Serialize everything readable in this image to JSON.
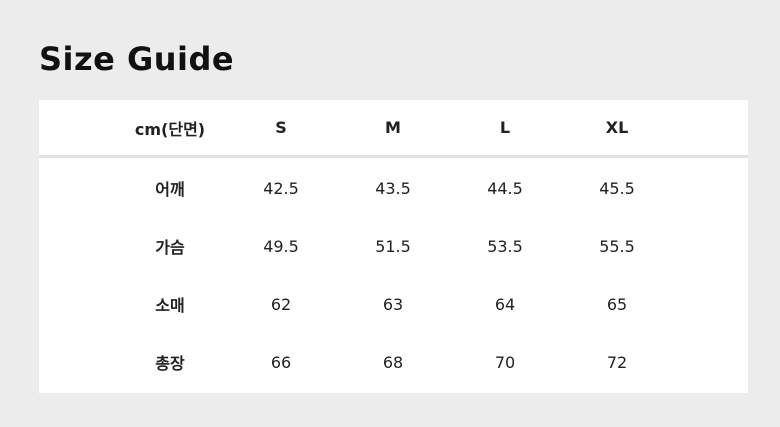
{
  "title": "Size Guide",
  "table": {
    "unit_header": "cm(단면)",
    "sizes": [
      "S",
      "M",
      "L",
      "XL"
    ],
    "rows": [
      {
        "label": "어깨",
        "values": [
          "42.5",
          "43.5",
          "44.5",
          "45.5"
        ]
      },
      {
        "label": "가슴",
        "values": [
          "49.5",
          "51.5",
          "53.5",
          "55.5"
        ]
      },
      {
        "label": "소매",
        "values": [
          "62",
          "63",
          "64",
          "65"
        ]
      },
      {
        "label": "총장",
        "values": [
          "66",
          "68",
          "70",
          "72"
        ]
      }
    ]
  }
}
